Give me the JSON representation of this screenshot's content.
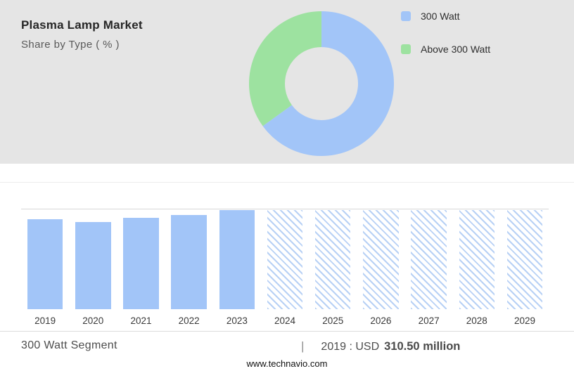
{
  "header": {
    "title": "Plasma Lamp Market",
    "subtitle": "Share by Type ( % )"
  },
  "legend": [
    {
      "label": "300 Watt",
      "color": "#a2c5f8"
    },
    {
      "label": "Above 300 Watt",
      "color": "#9de2a0"
    }
  ],
  "footer": {
    "segment_label": "300 Watt Segment",
    "separator": "|",
    "value_prefix": "2019 : USD",
    "value_bold": "310.50 million",
    "website": "www.technavio.com"
  },
  "colors": {
    "header_bg": "#e5e5e5",
    "bar_blue": "#a2c5f8",
    "hatch_blue": "#b8d1f5",
    "green": "#9de2a0",
    "grid": "#d8d8d8"
  },
  "chart_data": [
    {
      "type": "pie",
      "subtype": "donut",
      "title": "Plasma Lamp Market — Share by Type ( % )",
      "legend_position": "right",
      "segments": [
        {
          "label": "300 Watt",
          "value": 65,
          "color": "#a2c5f8"
        },
        {
          "label": "Above 300 Watt",
          "value": 35,
          "color": "#9de2a0"
        }
      ]
    },
    {
      "type": "bar",
      "title": "300 Watt Segment",
      "categories": [
        "2019",
        "2020",
        "2021",
        "2022",
        "2023",
        "2024",
        "2025",
        "2026",
        "2027",
        "2028",
        "2029"
      ],
      "values": [
        310.5,
        302,
        317,
        325,
        343,
        343,
        343,
        343,
        343,
        343,
        343
      ],
      "values_note": "Only 2019 is labeled (USD 310.50 million); other values estimated from bar heights; 2024-2029 are hatched forecast bars",
      "forecast_from_index": 5,
      "ylim": [
        0,
        345
      ],
      "xlabel": "",
      "ylabel": "",
      "grid": "top-line-only",
      "bar_color": "#a2c5f8",
      "forecast_style": "diagonal-hatch",
      "annotation": "2019 : USD 310.50 million"
    }
  ]
}
